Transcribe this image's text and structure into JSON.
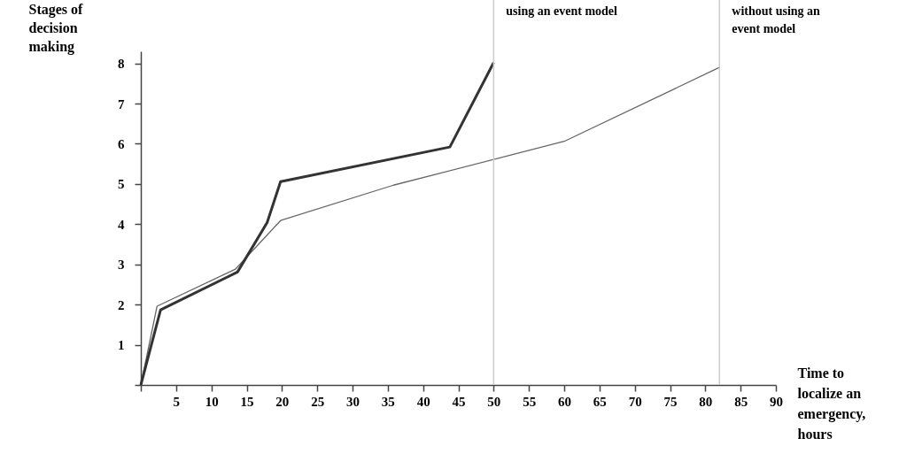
{
  "chart_data": {
    "type": "line",
    "xlabel": "Time to localize an emergency, hours",
    "ylabel": "Stages of decision making",
    "xlim": [
      0,
      90
    ],
    "xticks": [
      {
        "value": 0,
        "label": null
      },
      5,
      10,
      15,
      20,
      25,
      30,
      35,
      40,
      45,
      50,
      55,
      60,
      65,
      70,
      75,
      80,
      85,
      90
    ],
    "ylim": [
      0,
      8.3
    ],
    "yticks": [
      {
        "value": 0,
        "label": null
      },
      1,
      2,
      3,
      4,
      5,
      6,
      7,
      8
    ],
    "grid": false,
    "series": [
      {
        "color": "#666666",
        "x": [
          0,
          2.3,
          13.4,
          19.8,
          35.8,
          60,
          82
        ],
        "values": [
          0,
          1.96,
          2.88,
          4.09,
          4.97,
          6.06,
          7.9
        ]
      },
      {
        "color": "#333333",
        "x": [
          0,
          2.8,
          13.7,
          17.9,
          19.8,
          43.8,
          50
        ],
        "values": [
          0,
          1.87,
          2.81,
          4.04,
          5.06,
          5.92,
          8.02
        ]
      }
    ],
    "ref_lines": [
      {
        "axis": "x",
        "value": 50,
        "label": "using an event model",
        "color": "#cccccc"
      },
      {
        "axis": "x",
        "value": 82,
        "label": "without using an event model",
        "color": "#cccccc"
      }
    ]
  }
}
